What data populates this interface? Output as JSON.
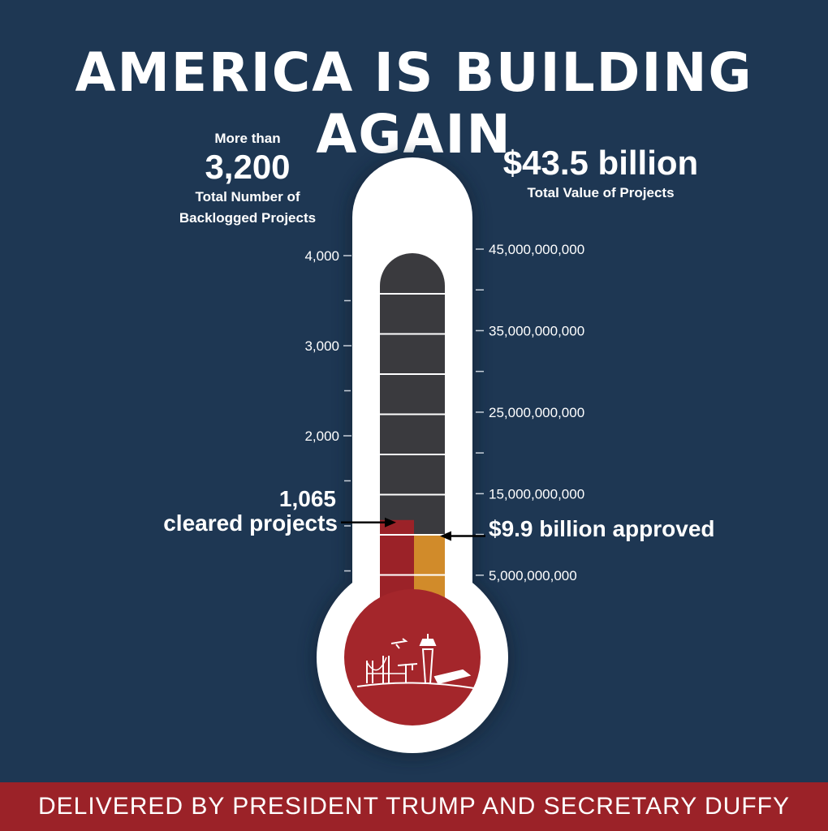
{
  "title": "AMERICA IS BUILDING AGAIN",
  "left_stat": {
    "prefix": "More than",
    "value": "3,200",
    "label_line1": "Total Number of",
    "label_line2": "Backlogged Projects"
  },
  "right_stat": {
    "value": "$43.5 billion",
    "label": "Total Value of Projects"
  },
  "footer": "DELIVERED BY PRESIDENT TRUMP AND SECRETARY DUFFY",
  "colors": {
    "background": "#1e3753",
    "projects_fill": "#9b2228",
    "value_fill": "#d18b2a",
    "empty_tube": "#3a3a3e",
    "bulb": "#a4262b"
  },
  "chart_data": {
    "type": "thermometer",
    "title": "AMERICA IS BUILDING AGAIN",
    "left_axis": {
      "min": 0,
      "max": 4000,
      "labeled_ticks": [
        {
          "value": 4000,
          "label": "4,000"
        },
        {
          "value": 3000,
          "label": "3,000"
        },
        {
          "value": 2000,
          "label": "2,000"
        }
      ],
      "minor_ticks": [
        3500,
        2500,
        1500,
        1000,
        500
      ]
    },
    "right_axis": {
      "min": 0,
      "max": 45000000000,
      "labeled_ticks": [
        {
          "value": 45000000000,
          "label": "45,000,000,000"
        },
        {
          "value": 35000000000,
          "label": "35,000,000,000"
        },
        {
          "value": 25000000000,
          "label": "25,000,000,000"
        },
        {
          "value": 15000000000,
          "label": "15,000,000,000"
        },
        {
          "value": 5000000000,
          "label": "5,000,000,000"
        }
      ],
      "minor_ticks": [
        40000000000,
        30000000000,
        20000000000,
        10000000000
      ]
    },
    "series": [
      {
        "name": "cleared projects",
        "value": 1065,
        "axis": "left",
        "annotation_value": "1,065",
        "annotation_label": "cleared projects"
      },
      {
        "name": "approved",
        "value": 9900000000,
        "axis": "right",
        "annotation_label": "$9.9 billion approved"
      }
    ],
    "totals": {
      "projects": 3200,
      "value": 43500000000
    }
  }
}
